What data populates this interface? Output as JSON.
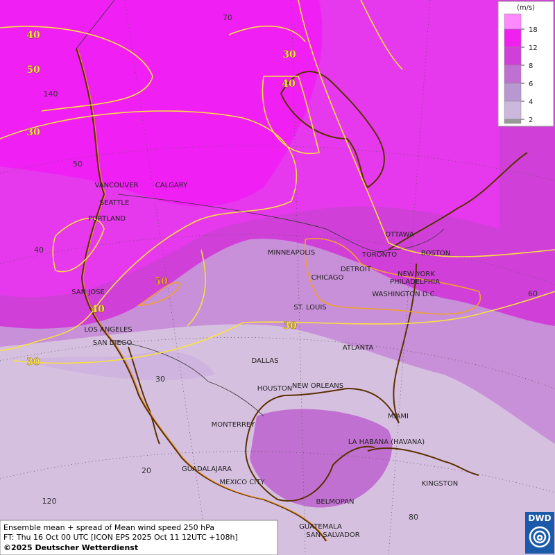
{
  "cities": [
    "VANCOUVER",
    "CALGARY",
    "SEATTLE",
    "PORTLAND",
    "MINNEAPOLIS",
    "TORONTO",
    "OTTAWA",
    "BOSTON",
    "DETROIT",
    "CHICAGO",
    "NEW YORK",
    "PHILADELPHIA",
    "WASHINGTON D.C.",
    "SAN JOSE",
    "ST. LOUIS",
    "LOS ANGELES",
    "SAN DIEGO",
    "ATLANTA",
    "DALLAS",
    "HOUSTON",
    "NEW ORLEANS",
    "MIAMI",
    "MONTERREY",
    "LA HABANA (HAVANA)",
    "GUADALAJARA",
    "MEXICO CITY",
    "KINGSTON",
    "BELMOPAN",
    "GUATEMALA",
    "SAN SALVADOR"
  ],
  "contour_labels": [
    40,
    50,
    30,
    30,
    40,
    50,
    40,
    30,
    30
  ],
  "grid_labels": [
    70,
    140,
    50,
    40,
    60,
    30,
    20,
    120,
    80
  ],
  "legend": {
    "unit": "(m/s)",
    "ticks": [
      18,
      12,
      8,
      6,
      4,
      2
    ]
  },
  "footer": {
    "line1": "Ensemble mean + spread of Mean wind speed 250 hPa",
    "line2": "FT: Thu 16 Oct 00 UTC [ICON EPS 2025 Oct 11 12UTC +108h]",
    "line3": "©2025 Deutscher Wetterdienst"
  },
  "logo": "DWD"
}
